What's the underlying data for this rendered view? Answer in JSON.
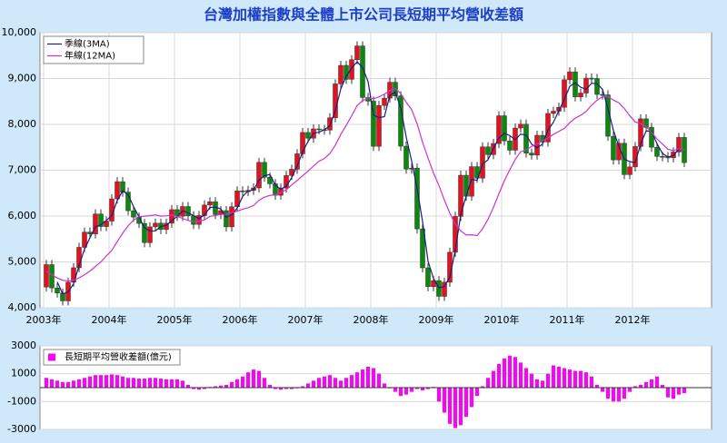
{
  "chart_data": [
    {
      "type": "candlestick",
      "title": "台灣加權指數與全體上市公司長短期平均營收差額",
      "categories": [
        "2003年",
        null,
        null,
        null,
        null,
        null,
        null,
        null,
        null,
        null,
        null,
        null,
        "2004年",
        null,
        null,
        null,
        null,
        null,
        null,
        null,
        null,
        null,
        null,
        null,
        "2005年",
        null,
        null,
        null,
        null,
        null,
        null,
        null,
        null,
        null,
        null,
        null,
        "2006年",
        null,
        null,
        null,
        null,
        null,
        null,
        null,
        null,
        null,
        null,
        null,
        "2007年",
        null,
        null,
        null,
        null,
        null,
        null,
        null,
        null,
        null,
        null,
        null,
        "2008年",
        null,
        null,
        null,
        null,
        null,
        null,
        null,
        null,
        null,
        null,
        null,
        "2009年",
        null,
        null,
        null,
        null,
        null,
        null,
        null,
        null,
        null,
        null,
        null,
        "2010年",
        null,
        null,
        null,
        null,
        null,
        null,
        null,
        null,
        null,
        null,
        null,
        "2011年",
        null,
        null,
        null,
        null,
        null,
        null,
        null,
        null,
        null,
        null,
        null,
        "2012年",
        null,
        null,
        null,
        null,
        null,
        null,
        null,
        null,
        null
      ],
      "open": [
        4452,
        4941,
        4432,
        4321,
        4149,
        4556,
        4872,
        5318,
        5650,
        5611,
        6045,
        5771,
        5890,
        6375,
        6750,
        6522,
        6117,
        5977,
        5839,
        5420,
        5765,
        5845,
        5706,
        5844,
        6140,
        5994,
        6208,
        6005,
        5818,
        6011,
        6241,
        6312,
        6033,
        6119,
        5764,
        6203,
        6548,
        6532,
        6561,
        6614,
        7171,
        6847,
        6704,
        6453,
        6611,
        6884,
        7021,
        7358,
        7823,
        7699,
        7901,
        7884,
        7875,
        8145,
        8883,
        9287,
        8982,
        9411,
        9711,
        8586,
        8506,
        7521,
        8412,
        8572,
        8919,
        8620,
        7524,
        7024,
        7046,
        5720,
        4871,
        4460,
        4591,
        4248,
        4557,
        5210,
        5992,
        6890,
        6432,
        7078,
        6826,
        7509,
        7340,
        7582,
        8188,
        7640,
        7436,
        7920,
        8004,
        7374,
        7329,
        7761,
        7616,
        8238,
        8287,
        8372,
        8973,
        9146,
        8600,
        8683,
        9008,
        9001,
        8653,
        8644,
        7741,
        7225,
        7588,
        6904,
        7072,
        7517,
        8121,
        7933,
        7501,
        7301,
        7296,
        7270,
        7397,
        7715
      ],
      "high": [
        5041,
        5041,
        4532,
        4421,
        4656,
        4972,
        5418,
        5750,
        5750,
        6145,
        6145,
        5990,
        6475,
        6850,
        6850,
        6622,
        6217,
        6077,
        5939,
        5865,
        5945,
        5945,
        5944,
        6240,
        6240,
        6308,
        6308,
        6105,
        6111,
        6341,
        6412,
        6412,
        6219,
        6219,
        6303,
        6648,
        6648,
        6661,
        6714,
        7271,
        7271,
        6947,
        6804,
        6711,
        6984,
        7121,
        7458,
        7923,
        7923,
        8001,
        8001,
        7984,
        8245,
        8983,
        9387,
        9387,
        9511,
        9811,
        9811,
        8686,
        8606,
        8512,
        8672,
        9019,
        9019,
        8720,
        7624,
        7146,
        7146,
        5820,
        4971,
        4691,
        4691,
        4657,
        5310,
        6092,
        6990,
        6990,
        7178,
        7178,
        7609,
        7609,
        7682,
        8288,
        8288,
        7740,
        8020,
        8104,
        8104,
        7474,
        7861,
        7861,
        8338,
        8387,
        8472,
        9073,
        9246,
        9246,
        8783,
        9108,
        9108,
        9101,
        8753,
        8744,
        7841,
        7688,
        7688,
        7172,
        7617,
        8221,
        8221,
        8033,
        7601,
        7401,
        7396,
        7497,
        7815,
        7815
      ],
      "low": [
        4352,
        4332,
        4221,
        4049,
        4049,
        4456,
        4772,
        5218,
        5511,
        5511,
        5671,
        5671,
        5790,
        6275,
        6422,
        6017,
        5877,
        5739,
        5320,
        5320,
        5665,
        5606,
        5606,
        5744,
        5894,
        5894,
        5905,
        5718,
        5718,
        5911,
        6141,
        5933,
        5933,
        5664,
        5664,
        6103,
        6432,
        6432,
        6461,
        6514,
        6747,
        6604,
        6353,
        6353,
        6511,
        6784,
        6921,
        7258,
        7599,
        7599,
        7784,
        7775,
        7775,
        8045,
        8783,
        8882,
        8882,
        9311,
        8486,
        8406,
        7421,
        7421,
        8312,
        8472,
        8520,
        7424,
        6924,
        6924,
        5620,
        4771,
        4360,
        4360,
        4148,
        4148,
        4457,
        5110,
        5892,
        6332,
        6332,
        6726,
        6726,
        7240,
        7240,
        7482,
        7540,
        7336,
        7336,
        7820,
        7274,
        7229,
        7229,
        7516,
        7516,
        8138,
        8187,
        8272,
        8873,
        8500,
        8500,
        8583,
        8901,
        8553,
        8544,
        7641,
        7125,
        7125,
        6804,
        6804,
        6972,
        7417,
        7833,
        7401,
        7201,
        7196,
        7170,
        7170,
        7297,
        7066
      ],
      "close": [
        4941,
        4432,
        4321,
        4149,
        4556,
        4872,
        5318,
        5650,
        5611,
        6045,
        5771,
        5890,
        6375,
        6750,
        6522,
        6117,
        5977,
        5839,
        5420,
        5765,
        5845,
        5706,
        5844,
        6140,
        5994,
        6208,
        6005,
        5818,
        6011,
        6241,
        6312,
        6033,
        6119,
        5764,
        6203,
        6548,
        6532,
        6561,
        6614,
        7171,
        6847,
        6704,
        6453,
        6611,
        6884,
        7021,
        7358,
        7823,
        7699,
        7901,
        7884,
        7875,
        8145,
        8883,
        9287,
        8982,
        9411,
        9711,
        8586,
        8506,
        7521,
        8412,
        8572,
        8919,
        8620,
        7524,
        7024,
        7046,
        5720,
        4871,
        4460,
        4591,
        4248,
        4557,
        5210,
        5992,
        6890,
        6432,
        7078,
        6826,
        7509,
        7340,
        7582,
        8188,
        7640,
        7436,
        7920,
        8004,
        7374,
        7329,
        7761,
        7616,
        8238,
        8287,
        8372,
        8973,
        9146,
        8600,
        8683,
        9008,
        9001,
        8653,
        8644,
        7741,
        7225,
        7588,
        6904,
        7072,
        7517,
        8121,
        7933,
        7501,
        7301,
        7296,
        7270,
        7397,
        7715,
        7166
      ],
      "up_color": "#e8101c",
      "down_color": "#0a8a0a",
      "series": [
        {
          "name": "季線(3MA)",
          "color": "#1c1c80",
          "values": [
            null,
            null,
            4565,
            4301,
            4342,
            4526,
            4915,
            5280,
            5526,
            5769,
            5809,
            5902,
            6012,
            6338,
            6549,
            6463,
            6205,
            5978,
            5745,
            5675,
            5677,
            5772,
            5798,
            5897,
            5993,
            6114,
            6069,
            6010,
            5945,
            6023,
            6188,
            6195,
            6155,
            5972,
            6029,
            6172,
            6428,
            6547,
            6569,
            6782,
            6877,
            6907,
            6668,
            6589,
            6649,
            6839,
            7088,
            7401,
            7627,
            7808,
            7828,
            7887,
            7968,
            8301,
            8772,
            9051,
            9227,
            9368,
            9236,
            8934,
            8204,
            8146,
            8168,
            8634,
            8704,
            8354,
            7723,
            7198,
            6597,
            5879,
            5017,
            4641,
            4433,
            4465,
            4672,
            5253,
            6031,
            6438,
            6800,
            6779,
            7138,
            7225,
            7477,
            7703,
            7803,
            7755,
            7665,
            7787,
            7766,
            7569,
            7488,
            7569,
            7872,
            8047,
            8299,
            8544,
            8830,
            8906,
            8810,
            8764,
            8897,
            8887,
            8766,
            8346,
            7870,
            7518,
            7239,
            7188,
            7164,
            7570,
            7857,
            7852,
            7578,
            7366,
            7289,
            7321,
            7461,
            7426
          ]
        },
        {
          "name": "年線(12MA)",
          "color": "#cc33cc",
          "values": [
            4800,
            4720,
            4650,
            4600,
            4580,
            4600,
            4650,
            4720,
            4800,
            4900,
            5000,
            5130,
            5249,
            5442,
            5626,
            5790,
            5908,
            5989,
            5997,
            6007,
            6026,
            5998,
            6004,
            6025,
            5993,
            5948,
            5905,
            5880,
            5883,
            5916,
            5991,
            6013,
            6036,
            6041,
            6071,
            6105,
            6150,
            6179,
            6230,
            6342,
            6412,
            6451,
            6462,
            6511,
            6574,
            6679,
            6775,
            6882,
            6979,
            7091,
            7196,
            7255,
            7363,
            7545,
            7781,
            7979,
            8189,
            8413,
            8516,
            8573,
            8558,
            8600,
            8658,
            8745,
            8784,
            8671,
            8482,
            8321,
            8013,
            7610,
            7266,
            6940,
            6667,
            6346,
            6066,
            5822,
            5678,
            5587,
            5591,
            5573,
            5722,
            5928,
            6188,
            6488,
            6770,
            7010,
            7236,
            7404,
            7444,
            7519,
            7576,
            7642,
            7702,
            7781,
            7847,
            7913,
            8038,
            8135,
            8199,
            8282,
            8418,
            8528,
            8602,
            8612,
            8528,
            8470,
            8347,
            8189,
            8053,
            8013,
            7951,
            7825,
            7683,
            7570,
            7456,
            7427,
            7468,
            7433
          ]
        }
      ],
      "ylim": [
        4000,
        10000
      ],
      "yticks": [
        {
          "value": 4000,
          "label": "4,000"
        },
        {
          "value": 5000,
          "label": "5,000"
        },
        {
          "value": 6000,
          "label": "6,000"
        },
        {
          "value": 7000,
          "label": "7,000"
        },
        {
          "value": 8000,
          "label": "8,000"
        },
        {
          "value": 9000,
          "label": "9,000"
        },
        {
          "value": 10000,
          "label": "10,000"
        }
      ],
      "grid": true,
      "legend": "upper left"
    },
    {
      "type": "bar",
      "series": [
        {
          "name": "長短期平均營收差額(億元)",
          "color": "#ff00ff",
          "values": [
            700,
            600,
            500,
            400,
            400,
            500,
            600,
            700,
            800,
            900,
            900,
            900,
            950,
            900,
            800,
            700,
            700,
            650,
            650,
            700,
            700,
            650,
            600,
            600,
            600,
            500,
            200,
            -100,
            -150,
            -100,
            50,
            100,
            150,
            200,
            400,
            600,
            800,
            1100,
            1300,
            1200,
            700,
            200,
            -100,
            -150,
            -100,
            -100,
            -50,
            100,
            300,
            500,
            700,
            800,
            900,
            700,
            500,
            700,
            900,
            1100,
            1300,
            1500,
            1400,
            1000,
            300,
            -50,
            -300,
            -600,
            -500,
            -300,
            -100,
            -200,
            -100,
            50,
            -1000,
            -1800,
            -2600,
            -2900,
            -2700,
            -2100,
            -1400,
            -600,
            100,
            700,
            1200,
            1700,
            2100,
            2300,
            2200,
            1800,
            1400,
            1000,
            600,
            500,
            1000,
            1600,
            1500,
            1400,
            1300,
            1200,
            1200,
            1100,
            800,
            200,
            -300,
            -800,
            -1000,
            -1000,
            -800,
            -300,
            100,
            200,
            400,
            600,
            800,
            200,
            -700,
            -800,
            -500,
            -400
          ]
        }
      ],
      "ylim": [
        -3000,
        3000
      ],
      "yticks": [
        -3000,
        -1000,
        1000,
        3000
      ],
      "grid": true,
      "legend": "upper left"
    }
  ]
}
